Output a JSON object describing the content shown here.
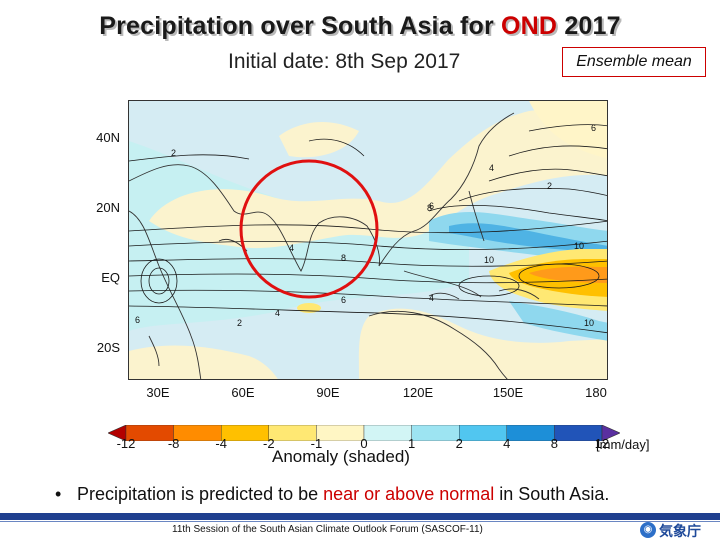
{
  "title": {
    "prefix": "Precipitation over South Asia for ",
    "highlight": "OND",
    "suffix": " 2017"
  },
  "subtitle": "Initial date: 8th Sep 2017",
  "ensemble_label": "Ensemble mean",
  "map": {
    "lat_labels": [
      "40N",
      "20N",
      "EQ",
      "20S"
    ],
    "lon_labels": [
      "30E",
      "60E",
      "90E",
      "120E",
      "150E",
      "180"
    ],
    "contour_labels": [
      "6",
      "2",
      "4",
      "6",
      "8",
      "10",
      "2",
      "4",
      "6",
      "8",
      "4",
      "10",
      "6",
      "2",
      "4",
      "10"
    ],
    "highlight_circle": "South Asia"
  },
  "colorbar": {
    "labels": [
      "-12",
      "-8",
      "-4",
      "-2",
      "-1",
      "0",
      "1",
      "2",
      "4",
      "8",
      "12"
    ],
    "colors": [
      "#b30000",
      "#e34a00",
      "#ff8c00",
      "#ffc000",
      "#ffe873",
      "#fff6c4",
      "#d2f5f5",
      "#9de4f2",
      "#51c6f0",
      "#1d8fd8",
      "#2154b8",
      "#5a2fa0"
    ],
    "unit": "[mm/day]"
  },
  "anomaly_label": "Anomaly (shaded)",
  "bullet": {
    "prefix": "Precipitation is predicted to be ",
    "highlight": "near or above normal",
    "suffix": " in South Asia."
  },
  "footer": {
    "text": "11th Session of the South Asian Climate Outlook Forum (SASCOF-11)",
    "logo_text": "気象庁"
  }
}
